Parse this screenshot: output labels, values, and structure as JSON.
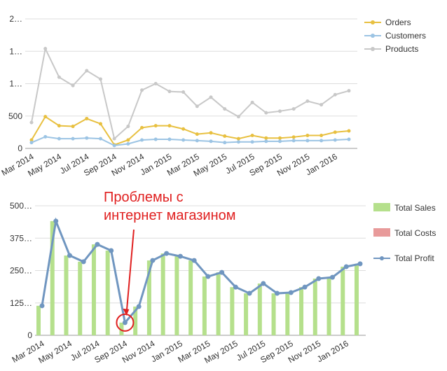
{
  "chart_data": [
    {
      "type": "line",
      "categories": [
        "Mar 2014",
        null,
        "May 2014",
        null,
        "Jul 2014",
        null,
        "Sep 2014",
        null,
        "Nov 2014",
        null,
        "Jan 2015",
        null,
        "Mar 2015",
        null,
        "May 2015",
        null,
        "Jul 2015",
        null,
        "Sep 2015",
        null,
        "Nov 2015",
        null,
        "Jan 2016",
        null
      ],
      "series": [
        {
          "name": "Orders",
          "color": "#e8c040",
          "kind": "line",
          "values": [
            130,
            490,
            350,
            340,
            460,
            380,
            55,
            130,
            320,
            350,
            350,
            300,
            220,
            240,
            190,
            150,
            200,
            160,
            160,
            175,
            200,
            200,
            250,
            270
          ]
        },
        {
          "name": "Customers",
          "color": "#9cc4e4",
          "kind": "line",
          "values": [
            90,
            180,
            150,
            150,
            160,
            150,
            45,
            70,
            130,
            140,
            140,
            130,
            120,
            110,
            90,
            100,
            100,
            110,
            110,
            120,
            120,
            120,
            130,
            140
          ]
        },
        {
          "name": "Products",
          "color": "#c8c8c8",
          "kind": "line",
          "values": [
            400,
            1540,
            1100,
            970,
            1200,
            1070,
            150,
            340,
            900,
            1000,
            880,
            870,
            650,
            790,
            610,
            490,
            710,
            550,
            575,
            610,
            730,
            675,
            830,
            890
          ]
        }
      ],
      "ylim": [
        0,
        2000
      ],
      "yticks": [
        0,
        500,
        {
          "value": 1000,
          "label": "1…"
        },
        {
          "value": 1500,
          "label": "1…"
        },
        {
          "value": 2000,
          "label": "2…"
        }
      ],
      "grid": true,
      "legend": "right"
    },
    {
      "type": "combo",
      "categories": [
        "Mar 2014",
        null,
        "May 2014",
        null,
        "Jul 2014",
        null,
        "Sep 2014",
        null,
        "Nov 2014",
        null,
        "Jan 2015",
        null,
        "Mar 2015",
        null,
        "May 2015",
        null,
        "Jul 2015",
        null,
        "Sep 2015",
        null,
        "Nov 2015",
        null,
        "Jan 2016",
        null
      ],
      "series": [
        {
          "name": "Total Sales",
          "color": "#b5e08c",
          "kind": "bar",
          "values": [
            114,
            441,
            308,
            284,
            351,
            327,
            49,
            111,
            289,
            316,
            305,
            289,
            227,
            243,
            186,
            162,
            200,
            162,
            165,
            186,
            219,
            224,
            265,
            276
          ]
        },
        {
          "name": "Total Costs",
          "color": "#e89a9a",
          "kind": "bar",
          "values": [
            0,
            0,
            0,
            0,
            0,
            0,
            0,
            0,
            0,
            0,
            0,
            0,
            0,
            0,
            0,
            0,
            0,
            0,
            0,
            0,
            0,
            0,
            0,
            0
          ]
        },
        {
          "name": "Total Profit",
          "color": "#7096c0",
          "kind": "line",
          "values": [
            114,
            441,
            308,
            284,
            351,
            327,
            49,
            111,
            289,
            316,
            305,
            289,
            227,
            243,
            186,
            162,
            200,
            162,
            165,
            186,
            219,
            224,
            265,
            276
          ]
        }
      ],
      "ylim": [
        0,
        500
      ],
      "yticks": [
        0,
        {
          "value": 125,
          "label": "125…"
        },
        {
          "value": 250,
          "label": "250…"
        },
        {
          "value": 375,
          "label": "375…"
        },
        {
          "value": 500,
          "label": "500…"
        }
      ],
      "grid": true,
      "legend": "right",
      "annotation": {
        "lines": [
          "Проблемы с",
          "интернет магазином"
        ],
        "color": "#e02020"
      }
    }
  ]
}
